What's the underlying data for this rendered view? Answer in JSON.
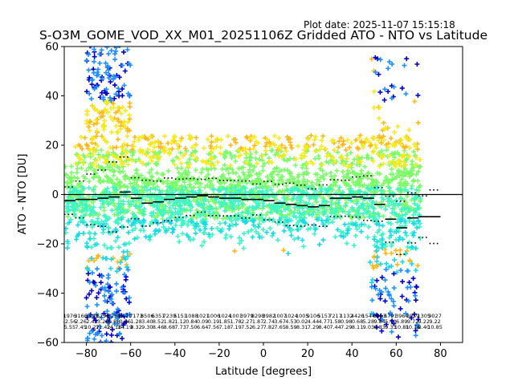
{
  "chart_data": {
    "type": "scatter",
    "title": "S-O3M_GOME_VOD_XX_M01_20251106Z Gridded ATO - NTO vs Latitude",
    "plot_date": "Plot date: 2025-11-07 15:15:18",
    "xlabel": "Latitude [degrees]",
    "ylabel": "ATO - NTO [DU]",
    "xlim": [
      -90,
      90
    ],
    "ylim": [
      -60,
      60
    ],
    "xticks": [
      -80,
      -60,
      -40,
      -20,
      0,
      20,
      40,
      60,
      80
    ],
    "yticks": [
      -60,
      -40,
      -20,
      0,
      20,
      40,
      60
    ],
    "xtick_labels": [
      "−80",
      "−60",
      "−40",
      "−20",
      "0",
      "20",
      "40",
      "60",
      "80"
    ],
    "ytick_labels": [
      "−60",
      "−40",
      "−20",
      "0",
      "20",
      "40",
      "60"
    ],
    "zero_line": 0,
    "bins": [
      {
        "lat": -87.5,
        "count": "1976",
        "mean": "-2.56",
        "std": "5.55",
        "median": -2.5
      },
      {
        "lat": -82.5,
        "count": "3166",
        "mean": "2.26",
        "std": "7.45",
        "median": -2.0
      },
      {
        "lat": -77.5,
        "count": "3849",
        "mean": "2.45",
        "std": "10.27",
        "median": -2.0
      },
      {
        "lat": -72.5,
        "count": "5290",
        "mean": "3.28",
        "std": "11.42",
        "median": -1.5
      },
      {
        "lat": -67.5,
        "count": "7256",
        "mean": "0.88",
        "std": "14.18",
        "median": -1.0
      },
      {
        "lat": -62.5,
        "count": "6171",
        "mean": "0.86",
        "std": "14.19",
        "median": 1.0
      },
      {
        "lat": -57.5,
        "count": "7173",
        "mean": "1.28",
        "std": "8.32",
        "median": -1.5
      },
      {
        "lat": -52.5,
        "count": "8506",
        "mean": "3.40",
        "std": "9.30",
        "median": -3.5
      },
      {
        "lat": -47.5,
        "count": "6351",
        "mean": "8.52",
        "std": "8.46",
        "median": -3.0
      },
      {
        "lat": -42.5,
        "count": "7239",
        "mean": "1.82",
        "std": "8.68",
        "median": -2.0
      },
      {
        "lat": -37.5,
        "count": "5151",
        "mean": "1.12",
        "std": "7.73",
        "median": -1.5
      },
      {
        "lat": -32.5,
        "count": "1088",
        "mean": "0.84",
        "std": "7.50",
        "median": -1.0
      },
      {
        "lat": -27.5,
        "count": "1021",
        "mean": "0.09",
        "std": "6.64",
        "median": -0.5
      },
      {
        "lat": -22.5,
        "count": "1006",
        "mean": "0.19",
        "std": "7.56",
        "median": -1.0
      },
      {
        "lat": -17.5,
        "count": "1024",
        "mean": "1.85",
        "std": "7.18",
        "median": -1.5
      },
      {
        "lat": -12.5,
        "count": "1001",
        "mean": "1.78",
        "std": "7.19",
        "median": -1.5
      },
      {
        "lat": -7.5,
        "count": "3979",
        "mean": "2.27",
        "std": "7.52",
        "median": -2.0
      },
      {
        "lat": -2.5,
        "count": "8298",
        "mean": "1.87",
        "std": "6.27",
        "median": -2.0
      },
      {
        "lat": 2.5,
        "count": "3982",
        "mean": "2.74",
        "std": "7.82",
        "median": -2.5
      },
      {
        "lat": 7.5,
        "count": "1007",
        "mean": "3.67",
        "std": "7.65",
        "median": -3.5
      },
      {
        "lat": 12.5,
        "count": "1024",
        "mean": "4.53",
        "std": "8.59",
        "median": -4.0
      },
      {
        "lat": 17.5,
        "count": "1005",
        "mean": "0.02",
        "std": "8.31",
        "median": -4.5
      },
      {
        "lat": 22.5,
        "count": "9106",
        "mean": "4.44",
        "std": "7.29",
        "median": -5.0
      },
      {
        "lat": 27.5,
        "count": "5157",
        "mean": "4.77",
        "std": "8.40",
        "median": -4.5
      },
      {
        "lat": 32.5,
        "count": "7217",
        "mean": "1.58",
        "std": "7.44",
        "median": -1.5
      },
      {
        "lat": 37.5,
        "count": "1132",
        "mean": "0.98",
        "std": "7.29",
        "median": -1.5
      },
      {
        "lat": 42.5,
        "count": "4426",
        "mean": "0.68",
        "std": "8.11",
        "median": -1.0
      },
      {
        "lat": 47.5,
        "count": "1544",
        "mean": "5.28",
        "std": "9.03",
        "median": -1.5
      },
      {
        "lat": 52.5,
        "count": "6963",
        "mean": "9.84",
        "std": "6.83",
        "median": -4.0
      },
      {
        "lat": 57.5,
        "count": "6791",
        "mean": "5.10",
        "std": "9.33",
        "median": -10.0
      },
      {
        "lat": 62.5,
        "count": "3964",
        "mean": "6.89",
        "std": "10.81",
        "median": -13.5
      },
      {
        "lat": 67.5,
        "count": "3059",
        "mean": "9.72",
        "std": "10.16",
        "median": -9.5
      },
      {
        "lat": 72.5,
        "count": "1305",
        "mean": "9.22",
        "std": "8.40",
        "median": -9.0
      },
      {
        "lat": 77.5,
        "count": "9027",
        "mean": "9.22",
        "std": "10.85",
        "median": -9.0
      }
    ],
    "colors": {
      "low": "#0000cd",
      "blue": "#1e90ff",
      "cyan": "#1ad9e6",
      "aqua": "#3df5c5",
      "green": "#7cfc68",
      "yellow": "#f5ea1a",
      "orange": "#ffb81a",
      "axis": "#000000",
      "median": "#000000"
    }
  }
}
